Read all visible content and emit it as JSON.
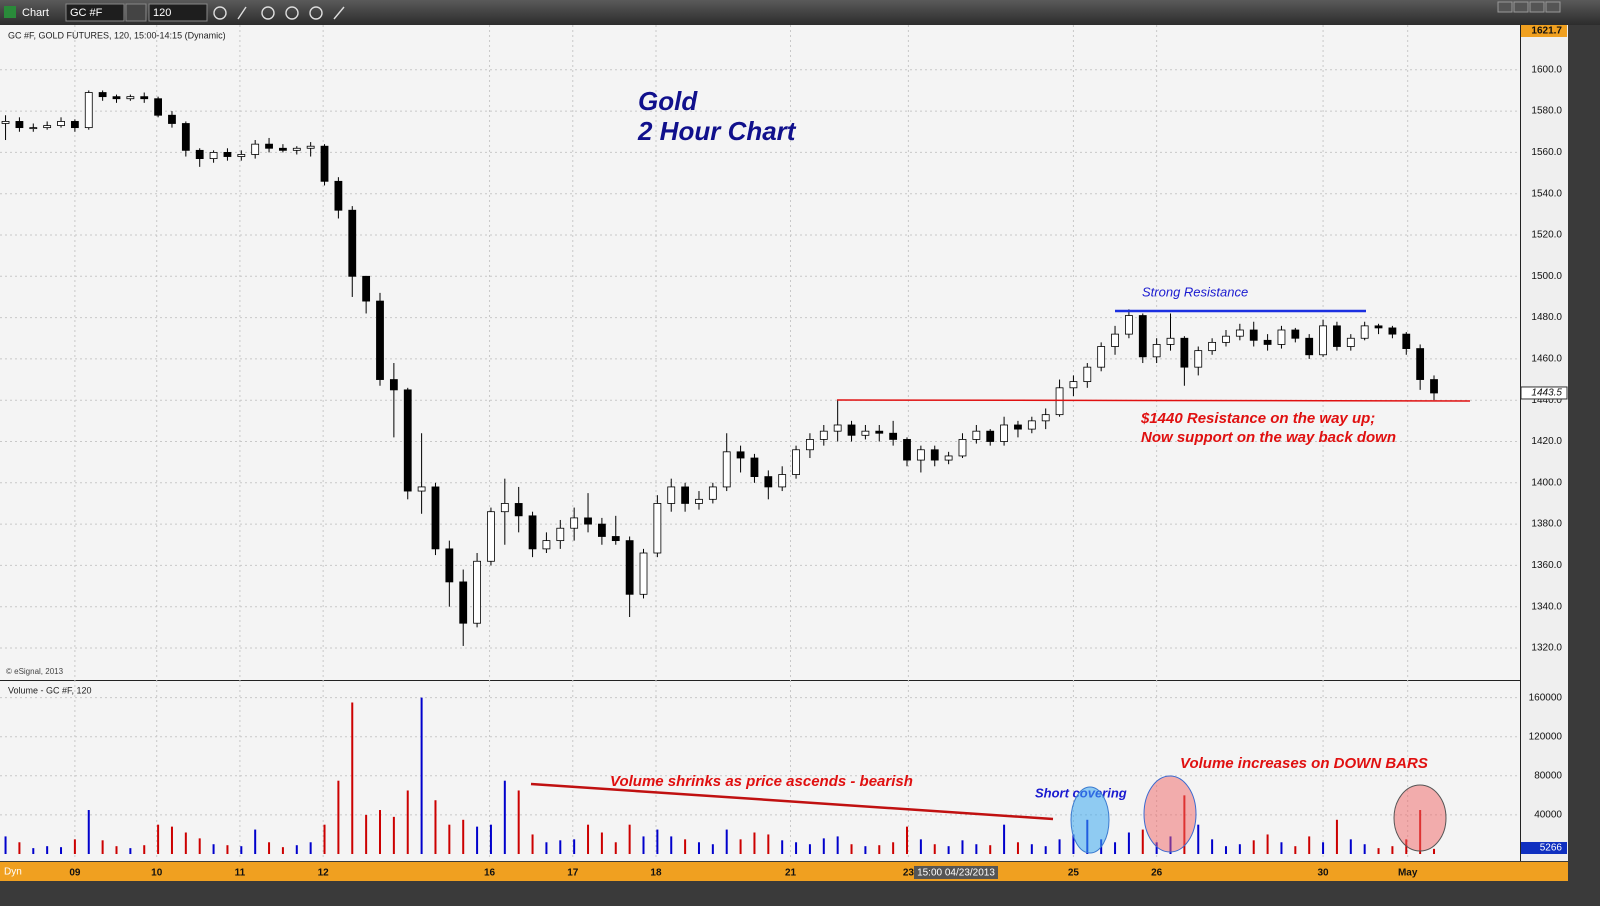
{
  "toolbar": {
    "title": "Chart",
    "symbol": "GC #F",
    "interval": "120"
  },
  "cursor_label": "15:00 04/23/2013",
  "mode": "Dyn",
  "chart_data": [
    {
      "type": "candlestick",
      "label": "GC #F, GOLD FUTURES, 120, 15:00-14:15 (Dynamic)",
      "title": "Gold",
      "subtitle": "2 Hour Chart",
      "copyright": "© eSignal, 2013",
      "annotations": [
        "Strong Resistance",
        "$1440 Resistance on the way up;",
        "Now support on the way back down"
      ],
      "up_color": "#ffffff",
      "down_color": "#000000",
      "ylim": [
        1304.5,
        1621.7
      ],
      "yticks": [
        {
          "value": 1320,
          "label": "1320.0"
        },
        {
          "value": 1340,
          "label": "1340.0"
        },
        {
          "value": 1360,
          "label": "1360.0"
        },
        {
          "value": 1380,
          "label": "1380.0"
        },
        {
          "value": 1400,
          "label": "1400.0"
        },
        {
          "value": 1420,
          "label": "1420.0"
        },
        {
          "value": 1440,
          "label": "1440.0"
        },
        {
          "value": 1460,
          "label": "1460.0"
        },
        {
          "value": 1480,
          "label": "1480.0"
        },
        {
          "value": 1500,
          "label": "1500.0"
        },
        {
          "value": 1520,
          "label": "1520.0"
        },
        {
          "value": 1540,
          "label": "1540.0"
        },
        {
          "value": 1560,
          "label": "1560.0"
        },
        {
          "value": 1580,
          "label": "1580.0"
        },
        {
          "value": 1600,
          "label": "1600.0"
        }
      ],
      "xlim": [
        -0.4,
        109.2
      ],
      "xticks": [
        {
          "value": 5.0,
          "label": "09"
        },
        {
          "value": 10.9,
          "label": "10"
        },
        {
          "value": 16.9,
          "label": "11"
        },
        {
          "value": 22.9,
          "label": "12"
        },
        {
          "value": 34.9,
          "label": "16"
        },
        {
          "value": 40.9,
          "label": "17"
        },
        {
          "value": 46.9,
          "label": "18"
        },
        {
          "value": 56.6,
          "label": "21"
        },
        {
          "value": 65.1,
          "label": "23"
        },
        {
          "value": 77.0,
          "label": "25"
        },
        {
          "value": 83.0,
          "label": "26"
        },
        {
          "value": 95.0,
          "label": "30"
        },
        {
          "value": 101.1,
          "label": "May"
        }
      ],
      "ohlc": [
        [
          1574,
          1578,
          1566,
          1575
        ],
        [
          1575,
          1577,
          1570,
          1572
        ],
        [
          1572,
          1574,
          1570,
          1572
        ],
        [
          1572,
          1575,
          1571,
          1573
        ],
        [
          1573,
          1577,
          1572,
          1575
        ],
        [
          1575,
          1576,
          1570,
          1572
        ],
        [
          1572,
          1590,
          1571,
          1589
        ],
        [
          1589,
          1590,
          1585,
          1587
        ],
        [
          1587,
          1588,
          1584,
          1586
        ],
        [
          1586,
          1588,
          1585,
          1587
        ],
        [
          1587,
          1589,
          1584,
          1586
        ],
        [
          1586,
          1587,
          1577,
          1578
        ],
        [
          1578,
          1580,
          1572,
          1574
        ],
        [
          1574,
          1575,
          1558,
          1561
        ],
        [
          1561,
          1562,
          1553,
          1557
        ],
        [
          1557,
          1561,
          1555,
          1560
        ],
        [
          1560,
          1562,
          1556,
          1558
        ],
        [
          1558,
          1561,
          1556,
          1559
        ],
        [
          1559,
          1566,
          1557,
          1564
        ],
        [
          1564,
          1567,
          1560,
          1562
        ],
        [
          1562,
          1564,
          1560,
          1561
        ],
        [
          1561,
          1563,
          1559,
          1562
        ],
        [
          1562,
          1565,
          1558,
          1563
        ],
        [
          1563,
          1564,
          1544,
          1546
        ],
        [
          1546,
          1548,
          1528,
          1532
        ],
        [
          1532,
          1534,
          1490,
          1500
        ],
        [
          1500,
          1500,
          1482,
          1488
        ],
        [
          1488,
          1492,
          1447,
          1450
        ],
        [
          1450,
          1458,
          1422,
          1445
        ],
        [
          1445,
          1446,
          1392,
          1396
        ],
        [
          1396,
          1424,
          1385,
          1398
        ],
        [
          1398,
          1400,
          1365,
          1368
        ],
        [
          1368,
          1372,
          1340,
          1352
        ],
        [
          1352,
          1358,
          1321,
          1332
        ],
        [
          1332,
          1366,
          1330,
          1362
        ],
        [
          1362,
          1388,
          1360,
          1386
        ],
        [
          1386,
          1402,
          1370,
          1390
        ],
        [
          1390,
          1398,
          1376,
          1384
        ],
        [
          1384,
          1386,
          1364,
          1368
        ],
        [
          1368,
          1376,
          1366,
          1372
        ],
        [
          1372,
          1382,
          1368,
          1378
        ],
        [
          1378,
          1388,
          1372,
          1383
        ],
        [
          1383,
          1395,
          1376,
          1380
        ],
        [
          1380,
          1383,
          1370,
          1374
        ],
        [
          1374,
          1384,
          1370,
          1372
        ],
        [
          1372,
          1374,
          1335,
          1346
        ],
        [
          1346,
          1368,
          1344,
          1366
        ],
        [
          1366,
          1394,
          1364,
          1390
        ],
        [
          1390,
          1402,
          1386,
          1398
        ],
        [
          1398,
          1400,
          1386,
          1390
        ],
        [
          1390,
          1396,
          1387,
          1392
        ],
        [
          1392,
          1400,
          1390,
          1398
        ],
        [
          1398,
          1424,
          1396,
          1415
        ],
        [
          1415,
          1418,
          1405,
          1412
        ],
        [
          1412,
          1414,
          1400,
          1403
        ],
        [
          1403,
          1406,
          1392,
          1398
        ],
        [
          1398,
          1408,
          1396,
          1404
        ],
        [
          1404,
          1418,
          1402,
          1416
        ],
        [
          1416,
          1424,
          1412,
          1421
        ],
        [
          1421,
          1428,
          1418,
          1425
        ],
        [
          1425,
          1440,
          1420,
          1428
        ],
        [
          1428,
          1430,
          1420,
          1423
        ],
        [
          1423,
          1428,
          1421,
          1425
        ],
        [
          1425,
          1428,
          1420,
          1424
        ],
        [
          1424,
          1430,
          1418,
          1421
        ],
        [
          1421,
          1422,
          1408,
          1411
        ],
        [
          1411,
          1418,
          1405,
          1416
        ],
        [
          1416,
          1418,
          1408,
          1411
        ],
        [
          1411,
          1415,
          1409,
          1413
        ],
        [
          1413,
          1424,
          1412,
          1421
        ],
        [
          1421,
          1428,
          1419,
          1425
        ],
        [
          1425,
          1426,
          1418,
          1420
        ],
        [
          1420,
          1432,
          1418,
          1428
        ],
        [
          1428,
          1430,
          1422,
          1426
        ],
        [
          1426,
          1432,
          1424,
          1430
        ],
        [
          1430,
          1436,
          1426,
          1433
        ],
        [
          1433,
          1450,
          1432,
          1446
        ],
        [
          1446,
          1452,
          1442,
          1449
        ],
        [
          1449,
          1458,
          1446,
          1456
        ],
        [
          1456,
          1468,
          1454,
          1466
        ],
        [
          1466,
          1476,
          1462,
          1472
        ],
        [
          1472,
          1484,
          1470,
          1481
        ],
        [
          1481,
          1482,
          1458,
          1461
        ],
        [
          1461,
          1470,
          1458,
          1467
        ],
        [
          1467,
          1482,
          1464,
          1470
        ],
        [
          1470,
          1471,
          1447,
          1456
        ],
        [
          1456,
          1466,
          1452,
          1464
        ],
        [
          1464,
          1470,
          1462,
          1468
        ],
        [
          1468,
          1474,
          1466,
          1471
        ],
        [
          1471,
          1477,
          1469,
          1474
        ],
        [
          1474,
          1478,
          1466,
          1469
        ],
        [
          1469,
          1472,
          1464,
          1467
        ],
        [
          1467,
          1476,
          1465,
          1474
        ],
        [
          1474,
          1475,
          1468,
          1470
        ],
        [
          1470,
          1472,
          1460,
          1462
        ],
        [
          1462,
          1479,
          1461,
          1476
        ],
        [
          1476,
          1478,
          1464,
          1466
        ],
        [
          1466,
          1472,
          1464,
          1470
        ],
        [
          1470,
          1478,
          1469,
          1476
        ],
        [
          1476,
          1477,
          1472,
          1475
        ],
        [
          1475,
          1476,
          1470,
          1472
        ],
        [
          1472,
          1473,
          1462,
          1465
        ],
        [
          1465,
          1467,
          1445,
          1450
        ],
        [
          1450,
          1452,
          1440,
          1443.5
        ]
      ]
    },
    {
      "type": "bar",
      "label": "Volume - GC #F, 120",
      "annotations": [
        "Volume shrinks as price ascends - bearish",
        "Short covering",
        "Volume increases on DOWN BARS"
      ],
      "up_color": "#0000cc",
      "down_color": "#cc0000",
      "ylim": [
        0,
        177000
      ],
      "yticks": [
        40000,
        80000,
        120000,
        160000
      ],
      "values": [
        18000,
        12000,
        6000,
        8000,
        7000,
        15000,
        45000,
        14000,
        8000,
        6000,
        9000,
        30000,
        28000,
        22000,
        16000,
        10000,
        9000,
        8000,
        25000,
        12000,
        7000,
        9000,
        12000,
        30000,
        75000,
        155000,
        40000,
        45000,
        38000,
        65000,
        160000,
        55000,
        30000,
        35000,
        28000,
        30000,
        75000,
        65000,
        20000,
        12000,
        14000,
        15000,
        30000,
        22000,
        12000,
        30000,
        18000,
        25000,
        18000,
        15000,
        12000,
        10000,
        25000,
        15000,
        22000,
        20000,
        14000,
        12000,
        10000,
        16000,
        18000,
        10000,
        8000,
        9000,
        12000,
        28000,
        15000,
        10000,
        8000,
        14000,
        10000,
        9000,
        30000,
        12000,
        10000,
        8000,
        15000,
        20000,
        35000,
        15000,
        12000,
        22000,
        25000,
        12000,
        18000,
        60000,
        30000,
        15000,
        8000,
        10000,
        14000,
        20000,
        12000,
        8000,
        18000,
        12000,
        35000,
        15000,
        10000,
        6000,
        8000,
        15000,
        45000,
        5266
      ]
    }
  ]
}
